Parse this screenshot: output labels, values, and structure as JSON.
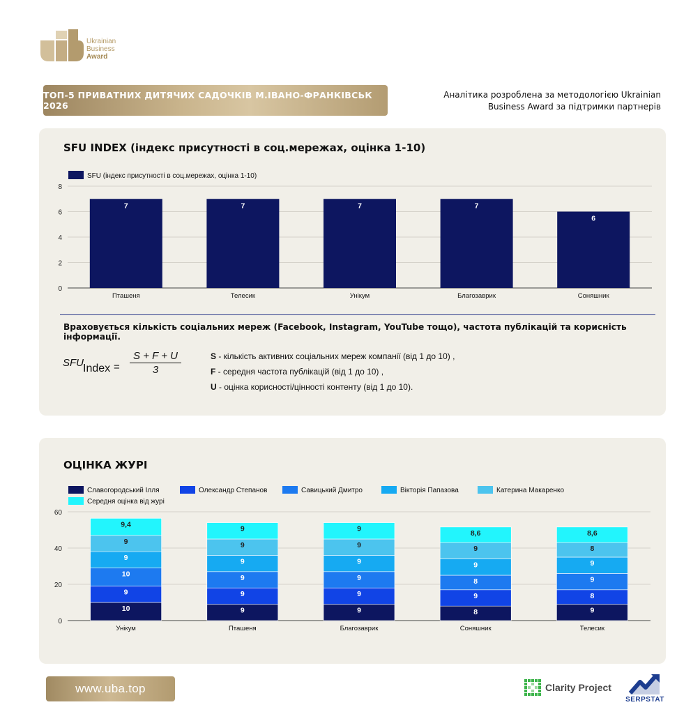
{
  "brand": {
    "logo_line1": "Ukrainian",
    "logo_line2": "Business",
    "logo_line3": "Award"
  },
  "header": {
    "title": "ТОП-5 ПРИВАТНИХ ДИТЯЧИХ САДОЧКІВ М.ІВАНО-ФРАНКІВСЬК 2026",
    "note": "Аналітика розроблена за методологією Ukrainian Business Award за підтримки партнерів"
  },
  "sfu_section": {
    "title": "SFU INDEX (індекс присутності в соц.мережах, оцінка 1-10)",
    "description": "Враховується кількість соціальних мереж (Facebook, Instagram, YouTube тощо), частота публікацій та корисність інформації.",
    "formula": {
      "lhs": "SFU",
      "lhs_sub": "Index",
      "eq": "=",
      "numerator": "S + F + U",
      "denominator": "3"
    },
    "definitions": [
      {
        "key": "S",
        "text": " - кількість активних соціальних мереж компанії (від 1 до 10) ,"
      },
      {
        "key": "F",
        "text": " - середня частота публікацій (від 1 до 10) ,"
      },
      {
        "key": "U",
        "text": " - оцінка корисності/цінності контенту (від 1 до 10)."
      }
    ]
  },
  "jury_section": {
    "title": "ОЦІНКА ЖУРІ"
  },
  "footer": {
    "url": "www.uba.top",
    "partner1": "Clarity Project",
    "partner2": "SERPSTAT"
  },
  "colors": {
    "sfu_bar": "#0d1660",
    "series": [
      "#0d1660",
      "#1144e6",
      "#1d7af0",
      "#16aaf2",
      "#4cc4ee",
      "#22f5fd"
    ],
    "gold": "#b49a66"
  },
  "chart_data": [
    {
      "type": "bar",
      "title": "",
      "categories": [
        "Пташеня",
        "Телесик",
        "Унікум",
        "Благозаврик",
        "Соняшник"
      ],
      "series": [
        {
          "name": "SFU (індекс присутності в соц.мережах, оцінка 1-10)",
          "values": [
            7,
            7,
            7,
            7,
            6
          ]
        }
      ],
      "ylim": [
        0,
        8
      ],
      "yticks": [
        0,
        2,
        4,
        6,
        8
      ],
      "grid": true,
      "legend": "top-left"
    },
    {
      "type": "bar",
      "stacked": true,
      "title": "",
      "categories": [
        "Унікум",
        "Пташеня",
        "Благозаврик",
        "Соняшник",
        "Телесик"
      ],
      "series": [
        {
          "name": "Славогородський Ілля",
          "values": [
            10,
            9,
            9,
            8,
            9
          ],
          "labels": [
            "10",
            "9",
            "9",
            "8",
            "9"
          ]
        },
        {
          "name": "Олександр Степанов",
          "values": [
            9,
            9,
            9,
            9,
            8
          ],
          "labels": [
            "9",
            "9",
            "9",
            "9",
            "8"
          ]
        },
        {
          "name": "Савицький Дмитро",
          "values": [
            10,
            9,
            9,
            8,
            9
          ],
          "labels": [
            "10",
            "9",
            "9",
            "8",
            "9"
          ]
        },
        {
          "name": "Вікторія Папазова",
          "values": [
            9,
            9,
            9,
            9,
            9
          ],
          "labels": [
            "9",
            "9",
            "9",
            "9",
            "9"
          ]
        },
        {
          "name": "Катерина Макаренко",
          "values": [
            9,
            9,
            9,
            9,
            8
          ],
          "labels": [
            "9",
            "9",
            "9",
            "9",
            "8"
          ]
        },
        {
          "name": "Середня оцінка від журі",
          "values": [
            9.4,
            9,
            9,
            8.6,
            8.6
          ],
          "labels": [
            "9,4",
            "9",
            "9",
            "8,6",
            "8,6"
          ]
        }
      ],
      "ylim": [
        0,
        60
      ],
      "yticks": [
        0,
        20,
        40,
        60
      ],
      "grid": true,
      "legend": "top-left"
    }
  ]
}
